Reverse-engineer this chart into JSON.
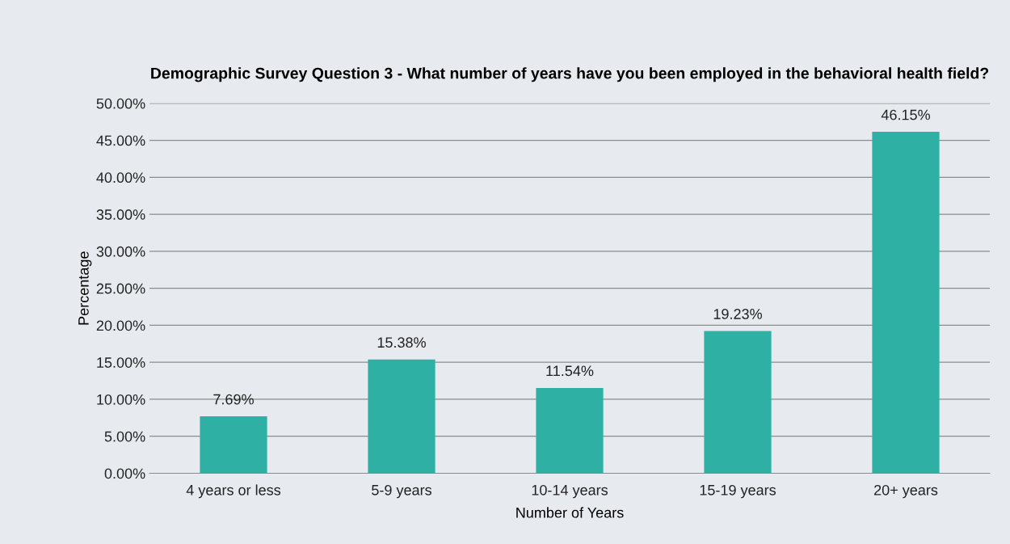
{
  "chart_data": {
    "type": "bar",
    "title": "Demographic Survey Question 3 - What number of years have you been employed in the behavioral health field?",
    "xlabel": "Number of Years",
    "ylabel": "Percentage",
    "categories": [
      "4 years or less",
      "5-9 years",
      "10-14 years",
      "15-19 years",
      "20+ years"
    ],
    "values": [
      7.69,
      15.38,
      11.54,
      19.23,
      46.15
    ],
    "value_labels": [
      "7.69%",
      "15.38%",
      "11.54%",
      "19.23%",
      "46.15%"
    ],
    "color": "#2eb0a5",
    "ylim": [
      0,
      50
    ],
    "yticks": [
      {
        "value": 0,
        "label": "0.00%"
      },
      {
        "value": 5,
        "label": "5.00%"
      },
      {
        "value": 10,
        "label": "10.00%"
      },
      {
        "value": 15,
        "label": "15.00%"
      },
      {
        "value": 20,
        "label": "20.00%"
      },
      {
        "value": 25,
        "label": "25.00%"
      },
      {
        "value": 30,
        "label": "30.00%"
      },
      {
        "value": 35,
        "label": "35.00%"
      },
      {
        "value": 40,
        "label": "40.00%"
      },
      {
        "value": 45,
        "label": "45.00%"
      },
      {
        "value": 50,
        "label": "50.00%"
      }
    ],
    "grid": "y",
    "legend": false
  }
}
